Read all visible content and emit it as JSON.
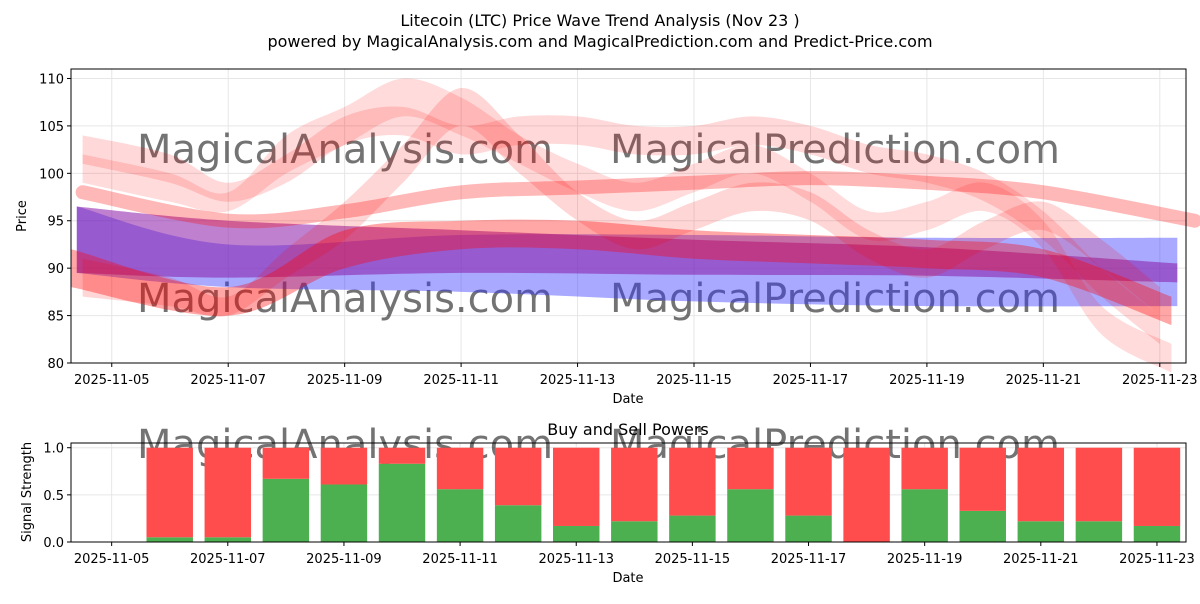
{
  "title": "Litecoin (LTC) Price Wave Trend Analysis (Nov 23 )",
  "subtitle": "powered by MagicalAnalysis.com and MagicalPrediction.com and Predict-Price.com",
  "watermarks": [
    "MagicalAnalysis.com",
    "MagicalPrediction.com"
  ],
  "colors": {
    "red": "#ff0000",
    "blue": "#3333ff",
    "purple": "#8b1aa8",
    "buy": "#4caf50",
    "sell": "#ff4d4d"
  },
  "chart_data": [
    {
      "type": "area",
      "title": "",
      "xlabel": "Date",
      "ylabel": "Price",
      "xlim": [
        4.3,
        23.45
      ],
      "ylim": [
        80,
        111
      ],
      "grid": true,
      "x_ticks": [
        5,
        7,
        9,
        11,
        13,
        15,
        17,
        19,
        21,
        23
      ],
      "x_tick_labels": [
        "2025-11-05",
        "2025-11-07",
        "2025-11-09",
        "2025-11-11",
        "2025-11-13",
        "2025-11-15",
        "2025-11-17",
        "2025-11-19",
        "2025-11-21",
        "2025-11-23"
      ],
      "y_ticks": [
        80,
        85,
        90,
        95,
        100,
        105,
        110
      ],
      "y_tick_labels": [
        "80",
        "85",
        "90",
        "95",
        "100",
        "105",
        "110"
      ],
      "series": [
        {
          "name": "blue-band",
          "color": "#3333ff",
          "x": [
            4.4,
            7,
            11,
            15,
            19,
            23.3
          ],
          "upper": [
            96.5,
            92.5,
            93.5,
            93.5,
            93.2,
            93.2
          ],
          "lower": [
            89.5,
            88,
            87.5,
            86.5,
            86,
            86
          ]
        },
        {
          "name": "purple-band",
          "color": "#8b1aa8",
          "x": [
            4.4,
            7,
            11,
            15,
            19,
            23.3
          ],
          "upper": [
            96.5,
            95,
            94,
            93,
            92.2,
            90.5
          ],
          "lower": [
            89.5,
            89,
            89.5,
            89.3,
            89.2,
            88.5
          ]
        },
        {
          "name": "red-wave-1",
          "color": "#ff0000",
          "x": [
            4.3,
            7,
            9,
            11,
            13,
            15,
            17,
            19,
            21,
            23.2
          ],
          "upper": [
            92,
            88,
            94,
            95,
            95,
            94,
            93.5,
            93,
            92,
            87
          ],
          "lower": [
            88,
            85,
            90,
            92,
            92,
            91,
            90.5,
            90,
            89,
            84
          ]
        },
        {
          "name": "red-wave-2",
          "color": "#ff0000",
          "x": [
            4.5,
            7,
            9,
            11,
            13,
            15,
            17,
            19,
            21,
            23.6
          ],
          "upper": [
            98,
            95,
            96,
            98,
            98.5,
            99,
            99.5,
            99,
            98,
            95
          ]
        },
        {
          "name": "red-wave-3",
          "color": "#ff0000",
          "x": [
            4.5,
            6,
            7,
            8,
            9,
            10,
            11,
            12,
            13,
            14,
            15,
            16,
            17,
            18,
            19,
            20,
            21,
            22,
            23.2
          ],
          "upper": [
            102,
            100,
            98,
            104,
            107,
            110,
            108,
            104,
            101,
            99,
            101,
            103,
            100,
            96,
            97,
            99,
            95,
            86,
            82
          ],
          "lower": [
            99,
            97,
            96,
            100,
            103,
            106,
            104,
            101,
            98,
            96,
            98,
            100,
            97,
            93,
            94,
            96,
            92,
            83,
            79
          ]
        },
        {
          "name": "red-wave-4",
          "color": "#ff0000",
          "x": [
            4.5,
            6,
            7,
            8,
            9,
            10,
            11,
            12,
            13,
            14,
            15,
            16,
            17,
            18,
            19,
            20,
            21,
            22,
            23
          ],
          "upper": [
            104,
            102,
            99,
            102,
            106,
            107,
            105,
            106,
            106,
            105,
            105,
            106,
            105,
            103,
            102,
            100,
            96,
            90,
            85
          ],
          "lower": [
            101,
            99,
            97,
            99,
            103,
            104,
            102,
            103,
            103,
            102,
            102,
            103,
            102,
            100,
            99,
            97,
            93,
            87,
            82
          ]
        },
        {
          "name": "red-wave-5",
          "color": "#ff0000",
          "x": [
            4.5,
            6,
            7,
            8,
            9,
            10,
            11,
            12,
            13,
            14,
            15,
            16,
            17,
            18,
            19,
            20,
            21,
            22,
            23
          ],
          "upper": [
            91,
            89,
            87,
            92,
            97,
            103,
            109,
            104,
            98,
            95,
            97,
            99,
            98,
            94,
            92,
            95,
            97,
            93,
            88
          ],
          "lower": [
            87,
            86,
            85,
            89,
            93,
            99,
            105,
            100,
            95,
            92,
            94,
            96,
            95,
            91,
            89,
            92,
            94,
            90,
            85
          ]
        }
      ]
    },
    {
      "type": "bar",
      "title": "Buy and Sell Powers",
      "xlabel": "Date",
      "ylabel": "Signal Strength",
      "xlim": [
        4.3,
        23.5
      ],
      "ylim": [
        0,
        1.05
      ],
      "grid": true,
      "x_ticks": [
        5,
        7,
        9,
        11,
        13,
        15,
        17,
        19,
        21,
        23
      ],
      "x_tick_labels": [
        "2025-11-05",
        "2025-11-07",
        "2025-11-09",
        "2025-11-11",
        "2025-11-13",
        "2025-11-15",
        "2025-11-17",
        "2025-11-19",
        "2025-11-21",
        "2025-11-23"
      ],
      "y_ticks": [
        0,
        0.5,
        1
      ],
      "y_tick_labels": [
        "0.0",
        "0.5",
        "1.0"
      ],
      "categories": [
        "2025-11-06",
        "2025-11-07",
        "2025-11-08",
        "2025-11-09",
        "2025-11-10",
        "2025-11-11",
        "2025-11-12",
        "2025-11-13",
        "2025-11-14",
        "2025-11-15",
        "2025-11-16",
        "2025-11-17",
        "2025-11-18",
        "2025-11-19",
        "2025-11-20",
        "2025-11-21",
        "2025-11-22",
        "2025-11-23"
      ],
      "x": [
        6,
        7,
        8,
        9,
        10,
        11,
        12,
        13,
        14,
        15,
        16,
        17,
        18,
        19,
        20,
        21,
        22,
        23
      ],
      "series": [
        {
          "name": "Buy",
          "color": "#4caf50",
          "values": [
            0.05,
            0.05,
            0.67,
            0.61,
            0.83,
            0.56,
            0.39,
            0.17,
            0.22,
            0.28,
            0.56,
            0.28,
            0.0,
            0.56,
            0.33,
            0.22,
            0.22,
            0.17
          ]
        },
        {
          "name": "Sell",
          "color": "#ff4d4d",
          "values": [
            0.95,
            0.95,
            0.33,
            0.39,
            0.17,
            0.44,
            0.61,
            0.83,
            0.78,
            0.72,
            0.44,
            0.72,
            1.0,
            0.44,
            0.67,
            0.78,
            0.78,
            0.83
          ]
        }
      ]
    }
  ]
}
